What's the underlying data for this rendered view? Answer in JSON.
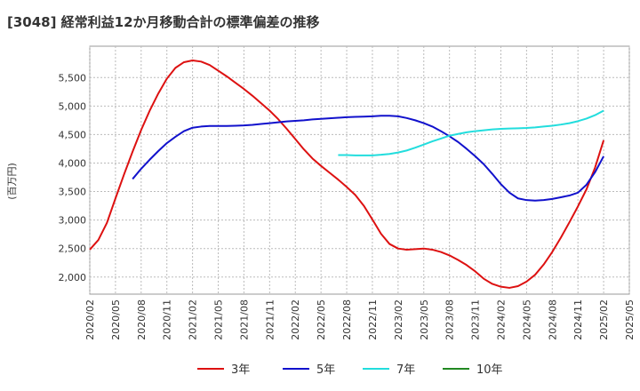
{
  "chart_data": {
    "type": "line",
    "title": "[3048]  経常利益12か月移動合計の標準偏差の推移",
    "ylabel": "(百万円)",
    "xlabel": "",
    "ylim": [
      1700,
      6050
    ],
    "yticks": [
      2000,
      2500,
      3000,
      3500,
      4000,
      4500,
      5000,
      5500
    ],
    "ytick_labels": [
      "2,000",
      "2,500",
      "3,000",
      "3,500",
      "4,000",
      "4,500",
      "5,000",
      "5,500"
    ],
    "xticks": [
      "2020/02",
      "2020/05",
      "2020/08",
      "2020/11",
      "2021/02",
      "2021/05",
      "2021/08",
      "2021/11",
      "2022/02",
      "2022/05",
      "2022/08",
      "2022/11",
      "2023/02",
      "2023/05",
      "2023/08",
      "2023/11",
      "2024/02",
      "2024/05",
      "2024/08",
      "2024/11",
      "2025/02",
      "2025/05"
    ],
    "grid": true,
    "legend_position": "bottom",
    "series": [
      {
        "name": "3年",
        "color": "#dd1111",
        "points": [
          [
            "2020/02",
            2480
          ],
          [
            "2020/03",
            2650
          ],
          [
            "2020/04",
            2950
          ],
          [
            "2020/05",
            3380
          ],
          [
            "2020/06",
            3800
          ],
          [
            "2020/07",
            4200
          ],
          [
            "2020/08",
            4580
          ],
          [
            "2020/09",
            4920
          ],
          [
            "2020/10",
            5220
          ],
          [
            "2020/11",
            5480
          ],
          [
            "2020/12",
            5670
          ],
          [
            "2021/01",
            5770
          ],
          [
            "2021/02",
            5800
          ],
          [
            "2021/03",
            5780
          ],
          [
            "2021/04",
            5720
          ],
          [
            "2021/05",
            5620
          ],
          [
            "2021/06",
            5520
          ],
          [
            "2021/07",
            5410
          ],
          [
            "2021/08",
            5300
          ],
          [
            "2021/09",
            5180
          ],
          [
            "2021/10",
            5050
          ],
          [
            "2021/11",
            4920
          ],
          [
            "2021/12",
            4770
          ],
          [
            "2022/01",
            4600
          ],
          [
            "2022/02",
            4420
          ],
          [
            "2022/03",
            4240
          ],
          [
            "2022/04",
            4080
          ],
          [
            "2022/05",
            3950
          ],
          [
            "2022/06",
            3830
          ],
          [
            "2022/07",
            3710
          ],
          [
            "2022/08",
            3580
          ],
          [
            "2022/09",
            3440
          ],
          [
            "2022/10",
            3250
          ],
          [
            "2022/11",
            3010
          ],
          [
            "2022/12",
            2760
          ],
          [
            "2023/01",
            2580
          ],
          [
            "2023/02",
            2500
          ],
          [
            "2023/03",
            2480
          ],
          [
            "2023/04",
            2490
          ],
          [
            "2023/05",
            2500
          ],
          [
            "2023/06",
            2480
          ],
          [
            "2023/07",
            2440
          ],
          [
            "2023/08",
            2380
          ],
          [
            "2023/09",
            2300
          ],
          [
            "2023/10",
            2210
          ],
          [
            "2023/11",
            2100
          ],
          [
            "2023/12",
            1970
          ],
          [
            "2024/01",
            1880
          ],
          [
            "2024/02",
            1830
          ],
          [
            "2024/03",
            1810
          ],
          [
            "2024/04",
            1840
          ],
          [
            "2024/05",
            1920
          ],
          [
            "2024/06",
            2040
          ],
          [
            "2024/07",
            2220
          ],
          [
            "2024/08",
            2440
          ],
          [
            "2024/09",
            2690
          ],
          [
            "2024/10",
            2960
          ],
          [
            "2024/11",
            3240
          ],
          [
            "2024/12",
            3540
          ],
          [
            "2025/01",
            3920
          ],
          [
            "2025/02",
            4400
          ]
        ]
      },
      {
        "name": "5年",
        "color": "#1111cc",
        "points": [
          [
            "2020/07",
            3720
          ],
          [
            "2020/08",
            3900
          ],
          [
            "2020/09",
            4060
          ],
          [
            "2020/10",
            4210
          ],
          [
            "2020/11",
            4350
          ],
          [
            "2020/12",
            4460
          ],
          [
            "2021/01",
            4560
          ],
          [
            "2021/02",
            4620
          ],
          [
            "2021/03",
            4640
          ],
          [
            "2021/04",
            4650
          ],
          [
            "2021/05",
            4650
          ],
          [
            "2021/06",
            4650
          ],
          [
            "2021/07",
            4655
          ],
          [
            "2021/08",
            4660
          ],
          [
            "2021/09",
            4670
          ],
          [
            "2021/10",
            4685
          ],
          [
            "2021/11",
            4700
          ],
          [
            "2021/12",
            4715
          ],
          [
            "2022/01",
            4730
          ],
          [
            "2022/02",
            4740
          ],
          [
            "2022/03",
            4750
          ],
          [
            "2022/04",
            4765
          ],
          [
            "2022/05",
            4775
          ],
          [
            "2022/06",
            4785
          ],
          [
            "2022/07",
            4795
          ],
          [
            "2022/08",
            4805
          ],
          [
            "2022/09",
            4810
          ],
          [
            "2022/10",
            4815
          ],
          [
            "2022/11",
            4820
          ],
          [
            "2022/12",
            4830
          ],
          [
            "2023/01",
            4830
          ],
          [
            "2023/02",
            4820
          ],
          [
            "2023/03",
            4790
          ],
          [
            "2023/04",
            4750
          ],
          [
            "2023/05",
            4700
          ],
          [
            "2023/06",
            4640
          ],
          [
            "2023/07",
            4560
          ],
          [
            "2023/08",
            4470
          ],
          [
            "2023/09",
            4370
          ],
          [
            "2023/10",
            4250
          ],
          [
            "2023/11",
            4120
          ],
          [
            "2023/12",
            3980
          ],
          [
            "2024/01",
            3810
          ],
          [
            "2024/02",
            3630
          ],
          [
            "2024/03",
            3480
          ],
          [
            "2024/04",
            3380
          ],
          [
            "2024/05",
            3350
          ],
          [
            "2024/06",
            3340
          ],
          [
            "2024/07",
            3350
          ],
          [
            "2024/08",
            3370
          ],
          [
            "2024/09",
            3400
          ],
          [
            "2024/10",
            3430
          ],
          [
            "2024/11",
            3480
          ],
          [
            "2024/12",
            3620
          ],
          [
            "2025/01",
            3840
          ],
          [
            "2025/02",
            4120
          ]
        ]
      },
      {
        "name": "7年",
        "color": "#22dddd",
        "points": [
          [
            "2022/07",
            4140
          ],
          [
            "2022/08",
            4140
          ],
          [
            "2022/09",
            4135
          ],
          [
            "2022/10",
            4135
          ],
          [
            "2022/11",
            4135
          ],
          [
            "2022/12",
            4145
          ],
          [
            "2023/01",
            4160
          ],
          [
            "2023/02",
            4185
          ],
          [
            "2023/03",
            4220
          ],
          [
            "2023/04",
            4270
          ],
          [
            "2023/05",
            4325
          ],
          [
            "2023/06",
            4380
          ],
          [
            "2023/07",
            4430
          ],
          [
            "2023/08",
            4480
          ],
          [
            "2023/09",
            4510
          ],
          [
            "2023/10",
            4540
          ],
          [
            "2023/11",
            4560
          ],
          [
            "2023/12",
            4575
          ],
          [
            "2024/01",
            4590
          ],
          [
            "2024/02",
            4600
          ],
          [
            "2024/03",
            4605
          ],
          [
            "2024/04",
            4610
          ],
          [
            "2024/05",
            4615
          ],
          [
            "2024/06",
            4625
          ],
          [
            "2024/07",
            4640
          ],
          [
            "2024/08",
            4655
          ],
          [
            "2024/09",
            4675
          ],
          [
            "2024/10",
            4700
          ],
          [
            "2024/11",
            4735
          ],
          [
            "2024/12",
            4780
          ],
          [
            "2025/01",
            4840
          ],
          [
            "2025/02",
            4920
          ]
        ]
      },
      {
        "name": "10年",
        "color": "#228822",
        "points": []
      }
    ]
  }
}
